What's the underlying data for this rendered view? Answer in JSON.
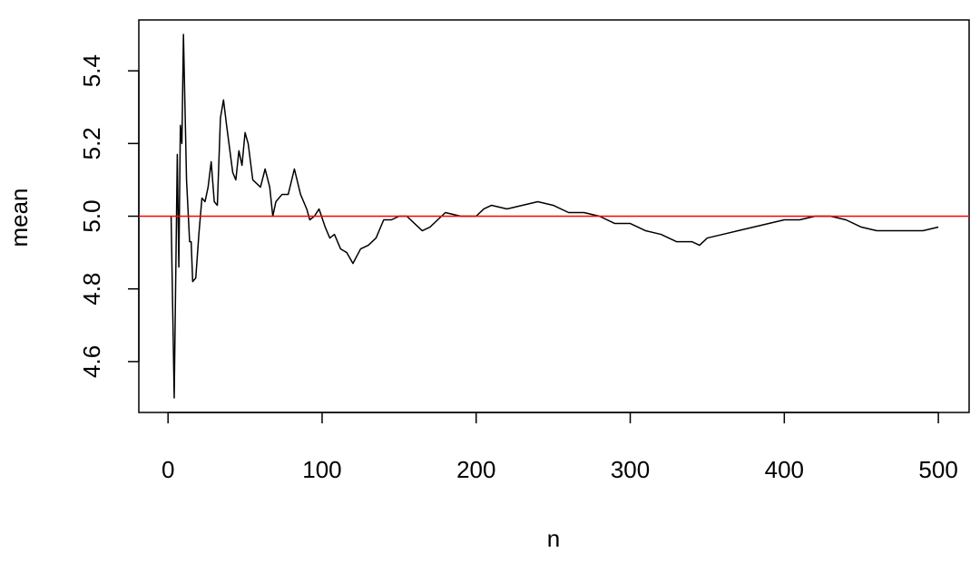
{
  "chart_data": {
    "type": "line",
    "x_label": "n",
    "y_label": "mean",
    "x": [
      2,
      4,
      6,
      7,
      8,
      9,
      10,
      12,
      14,
      15,
      16,
      18,
      20,
      22,
      24,
      26,
      28,
      30,
      32,
      34,
      36,
      38,
      42,
      44,
      46,
      48,
      50,
      52,
      55,
      60,
      63,
      66,
      68,
      70,
      74,
      78,
      82,
      86,
      90,
      92,
      95,
      98,
      102,
      105,
      108,
      112,
      116,
      120,
      125,
      130,
      135,
      140,
      145,
      150,
      155,
      160,
      165,
      170,
      175,
      180,
      190,
      200,
      205,
      210,
      220,
      230,
      240,
      250,
      260,
      270,
      280,
      290,
      300,
      310,
      320,
      330,
      340,
      345,
      350,
      360,
      370,
      380,
      390,
      400,
      410,
      420,
      430,
      440,
      450,
      460,
      470,
      480,
      490,
      500
    ],
    "series": [
      {
        "color": "#000000",
        "values": [
          5.0,
          4.5,
          5.17,
          4.86,
          5.25,
          5.2,
          5.5,
          5.1,
          4.93,
          4.93,
          4.82,
          4.83,
          4.95,
          5.05,
          5.04,
          5.08,
          5.15,
          5.04,
          5.03,
          5.27,
          5.32,
          5.25,
          5.12,
          5.1,
          5.18,
          5.14,
          5.23,
          5.2,
          5.1,
          5.08,
          5.13,
          5.08,
          5.0,
          5.04,
          5.06,
          5.06,
          5.13,
          5.06,
          5.02,
          4.99,
          5.0,
          5.02,
          4.97,
          4.94,
          4.95,
          4.91,
          4.9,
          4.87,
          4.91,
          4.92,
          4.94,
          4.99,
          4.99,
          5.0,
          5.0,
          4.98,
          4.96,
          4.97,
          4.99,
          5.01,
          5.0,
          5.0,
          5.02,
          5.03,
          5.02,
          5.03,
          5.04,
          5.03,
          5.01,
          5.01,
          5.0,
          4.98,
          4.98,
          4.96,
          4.95,
          4.93,
          4.93,
          4.92,
          4.94,
          4.95,
          4.96,
          4.97,
          4.98,
          4.99,
          4.99,
          5.0,
          5.0,
          4.99,
          4.97,
          4.96,
          4.96,
          4.96,
          4.96,
          4.97
        ]
      }
    ],
    "hline": {
      "value": 5.0,
      "color": "#ff0000"
    },
    "xlim": [
      -18.96,
      519.96
    ],
    "ylim": [
      4.46,
      5.54
    ],
    "xticks": [
      0,
      100,
      200,
      300,
      400,
      500
    ],
    "yticks": [
      4.6,
      4.8,
      {
        "value": 5.0,
        "label": "5.0"
      },
      5.2,
      5.4
    ]
  }
}
